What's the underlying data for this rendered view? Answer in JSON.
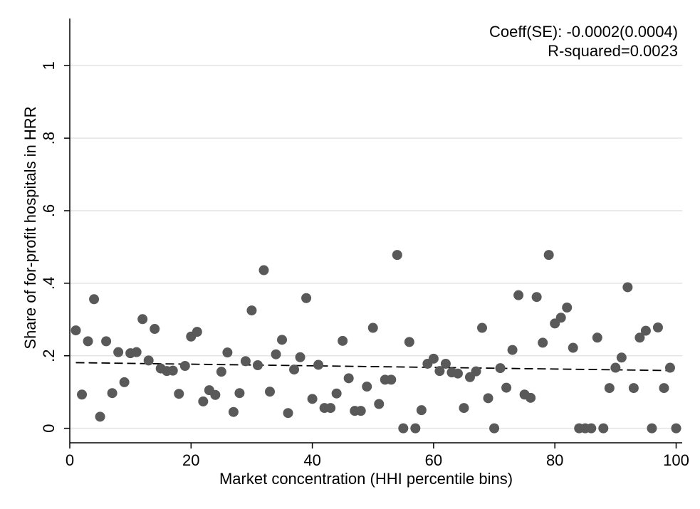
{
  "chart_data": {
    "type": "scatter",
    "xlabel": "Market concentration (HHI percentile bins)",
    "ylabel": "Share of for-profit hospitals in HRR",
    "xlim": [
      0,
      101
    ],
    "ylim": [
      -0.04,
      1.13
    ],
    "x_ticks": [
      0,
      20,
      40,
      60,
      80,
      100
    ],
    "x_tick_labels": [
      "0",
      "20",
      "40",
      "60",
      "80",
      "100"
    ],
    "y_ticks": [
      0,
      0.2,
      0.4,
      0.6,
      0.8,
      1
    ],
    "y_tick_labels": [
      "0",
      ".2",
      ".4",
      ".6",
      ".8",
      "1"
    ],
    "grid": "horizontal",
    "annotations": [
      "Coeff(SE): -0.0002(0.0004)",
      "R-squared=0.0023"
    ],
    "colors": {
      "points": "#595959",
      "fit_line": "#000000",
      "grid": "#e4e4e4"
    },
    "fit_line": {
      "x": [
        1,
        100
      ],
      "y": [
        0.181,
        0.159
      ],
      "style": "dashed"
    },
    "series": [
      {
        "x": [
          1,
          2,
          3,
          4,
          5,
          6,
          7,
          8,
          9,
          10,
          11,
          12,
          13,
          14,
          15,
          16,
          17,
          18,
          19,
          20,
          21,
          22,
          23,
          24,
          25,
          26,
          27,
          28,
          29,
          30,
          31,
          32,
          33,
          34,
          35,
          36,
          37,
          38,
          39,
          40,
          41,
          42,
          43,
          44,
          45,
          46,
          47,
          48,
          49,
          50,
          51,
          52,
          53,
          54,
          55,
          56,
          57,
          58,
          59,
          60,
          61,
          62,
          63,
          64,
          65,
          66,
          67,
          68,
          69,
          70,
          71,
          72,
          73,
          74,
          75,
          76,
          77,
          78,
          79,
          80,
          81,
          82,
          83,
          84,
          85,
          86,
          87,
          88,
          89,
          90,
          91,
          92,
          93,
          94,
          95,
          96,
          97,
          98,
          99,
          100
        ],
        "y": [
          0.27,
          0.093,
          0.24,
          0.356,
          0.032,
          0.24,
          0.097,
          0.21,
          0.127,
          0.207,
          0.21,
          0.301,
          0.187,
          0.274,
          0.165,
          0.158,
          0.159,
          0.095,
          0.172,
          0.253,
          0.266,
          0.074,
          0.105,
          0.092,
          0.156,
          0.209,
          0.045,
          0.097,
          0.185,
          0.325,
          0.174,
          0.436,
          0.101,
          0.204,
          0.244,
          0.042,
          0.162,
          0.196,
          0.359,
          0.081,
          0.175,
          0.056,
          0.056,
          0.096,
          0.241,
          0.138,
          0.048,
          0.048,
          0.115,
          0.277,
          0.067,
          0.134,
          0.134,
          0.478,
          0,
          0.238,
          0,
          0.05,
          0.178,
          0.192,
          0.158,
          0.178,
          0.154,
          0.151,
          0.056,
          0.141,
          0.157,
          0.277,
          0.083,
          0,
          0.166,
          0.112,
          0.216,
          0.367,
          0.093,
          0.084,
          0.362,
          0.236,
          0.478,
          0.289,
          0.305,
          0.333,
          0.222,
          0,
          0,
          0,
          0.25,
          0,
          0.111,
          0.167,
          0.195,
          0.389,
          0.111,
          0.25,
          0.269,
          0,
          0.278,
          0.111,
          0.167,
          0
        ]
      }
    ]
  }
}
